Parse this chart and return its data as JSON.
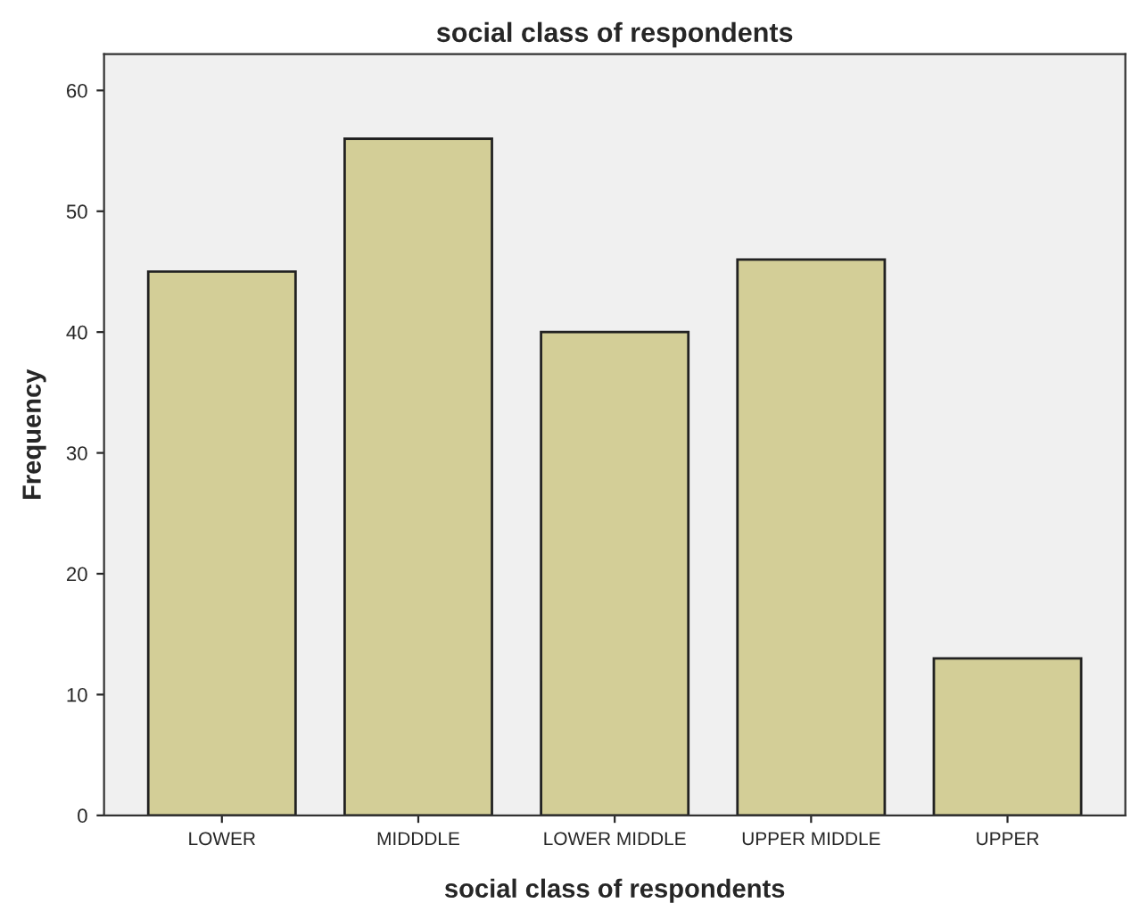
{
  "chart_data": {
    "type": "bar",
    "title": "social class of respondents",
    "xlabel": "social class of respondents",
    "ylabel": "Frequency",
    "categories": [
      "LOWER",
      "MIDDDLE",
      "LOWER MIDDLE",
      "UPPER MIDDLE",
      "UPPER"
    ],
    "values": [
      45,
      56,
      40,
      46,
      13
    ],
    "color": "#d3ce97",
    "ylim": [
      0,
      63
    ],
    "yticks": [
      0,
      10,
      20,
      30,
      40,
      50,
      60
    ],
    "grid": false
  }
}
